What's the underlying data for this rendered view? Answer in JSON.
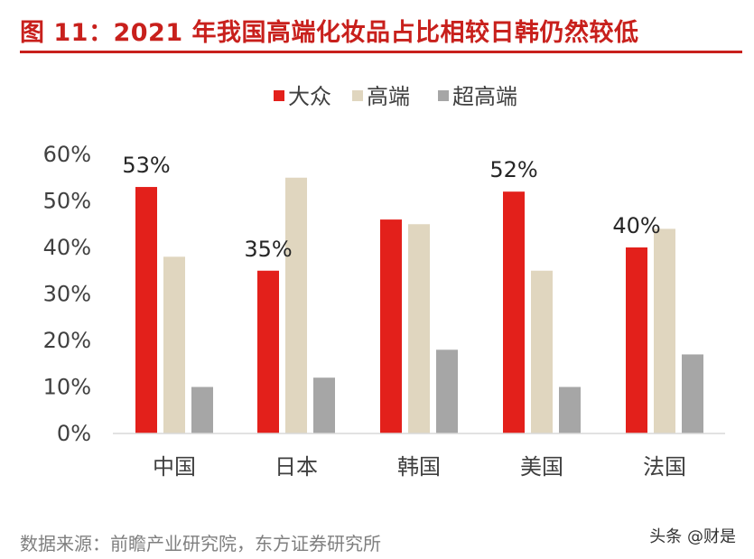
{
  "title": "图 11：2021 年我国高端化妆品占比相较日韩仍然较低",
  "source": "数据来源：前瞻产业研究院，东方证券研究所",
  "watermark": "头条 @财是",
  "chart_data": {
    "type": "bar",
    "categories": [
      "中国",
      "日本",
      "韩国",
      "美国",
      "法国"
    ],
    "series": [
      {
        "name": "大众",
        "color": "#e3201b",
        "values": [
          53,
          35,
          46,
          52,
          40
        ]
      },
      {
        "name": "高端",
        "color": "#e0d6bf",
        "values": [
          38,
          55,
          45,
          35,
          44
        ]
      },
      {
        "name": "超高端",
        "color": "#a6a6a6",
        "values": [
          10,
          12,
          18,
          10,
          17
        ]
      }
    ],
    "annotations": [
      {
        "category": "中国",
        "series": "大众",
        "text": "53%"
      },
      {
        "category": "日本",
        "series": "大众",
        "text": "35%"
      },
      {
        "category": "美国",
        "series": "大众",
        "text": "52%"
      },
      {
        "category": "法国",
        "series": "大众",
        "text": "40%"
      }
    ],
    "ylim": [
      0,
      60
    ],
    "yticks": [
      "0%",
      "10%",
      "20%",
      "30%",
      "40%",
      "50%",
      "60%"
    ],
    "grid": false,
    "legend": "top"
  }
}
